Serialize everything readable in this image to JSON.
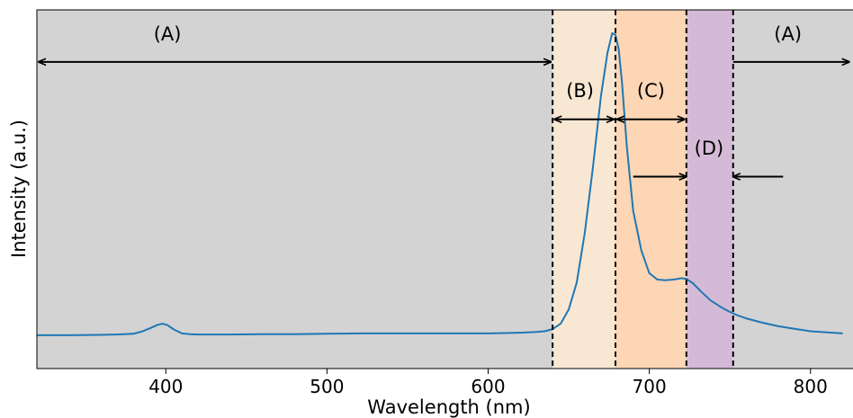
{
  "chart_data": {
    "type": "line",
    "title": "",
    "xlabel": "Wavelength (nm)",
    "ylabel": "Intensity (a.u.)",
    "xlim": [
      320,
      820
    ],
    "ylim": [
      0,
      1.0
    ],
    "xticks": [
      400,
      500,
      600,
      700,
      800
    ],
    "yticks_visible": false,
    "grid": false,
    "legend": "none",
    "series": [
      {
        "color": "#1f77b4",
        "x": [
          320,
          340,
          360,
          370,
          380,
          385,
          390,
          395,
          398,
          401,
          405,
          410,
          415,
          420,
          440,
          460,
          480,
          500,
          520,
          540,
          560,
          580,
          600,
          620,
          630,
          635,
          640,
          645,
          650,
          655,
          660,
          665,
          670,
          674,
          677,
          679,
          681,
          683,
          686,
          690,
          695,
          700,
          705,
          710,
          715,
          720,
          723,
          727,
          732,
          738,
          745,
          750,
          755,
          760,
          770,
          780,
          790,
          800,
          820
        ],
        "y": [
          0.093,
          0.093,
          0.094,
          0.095,
          0.097,
          0.103,
          0.112,
          0.122,
          0.125,
          0.121,
          0.109,
          0.098,
          0.096,
          0.095,
          0.095,
          0.096,
          0.096,
          0.097,
          0.098,
          0.098,
          0.098,
          0.098,
          0.098,
          0.1,
          0.102,
          0.104,
          0.11,
          0.125,
          0.165,
          0.24,
          0.38,
          0.56,
          0.76,
          0.88,
          0.935,
          0.93,
          0.89,
          0.8,
          0.62,
          0.44,
          0.33,
          0.266,
          0.248,
          0.246,
          0.248,
          0.252,
          0.25,
          0.238,
          0.215,
          0.19,
          0.17,
          0.158,
          0.148,
          0.14,
          0.128,
          0.118,
          0.111,
          0.104,
          0.098
        ]
      }
    ],
    "regions": [
      {
        "label": "(A)",
        "x0": 320,
        "x1": 640,
        "color": "#d3d3d3"
      },
      {
        "label": "(B)",
        "x0": 640,
        "x1": 679,
        "color": "#f8e8d3"
      },
      {
        "label": "(C)",
        "x0": 679,
        "x1": 723,
        "color": "#fdd6b5"
      },
      {
        "label": "(D)",
        "x0": 723,
        "x1": 752,
        "color": "#d5bad7"
      },
      {
        "label": "(A)",
        "x0": 752,
        "x1": 820,
        "color": "#d3d3d3"
      }
    ],
    "boundaries": [
      640,
      679,
      723,
      752
    ],
    "annotations": [
      {
        "text": "(A)",
        "x": 401,
        "y": 0.915
      },
      {
        "text": "(B)",
        "x": 657,
        "y": 0.757
      },
      {
        "text": "(C)",
        "x": 701,
        "y": 0.757
      },
      {
        "text": "(D)",
        "x": 737,
        "y": 0.597
      },
      {
        "text": "(A)",
        "x": 786,
        "y": 0.915
      }
    ],
    "arrows": [
      {
        "from": 320,
        "to": 640,
        "y": 0.855,
        "heads": "both"
      },
      {
        "from": 640,
        "to": 679,
        "y": 0.695,
        "heads": "both"
      },
      {
        "from": 679,
        "to": 723,
        "y": 0.695,
        "heads": "both"
      },
      {
        "from": 690,
        "to": 723,
        "y": 0.535,
        "heads": "end"
      },
      {
        "from": 783,
        "to": 752,
        "y": 0.535,
        "heads": "end"
      },
      {
        "from": 752,
        "to": 824,
        "y": 0.855,
        "heads": "end"
      }
    ]
  }
}
